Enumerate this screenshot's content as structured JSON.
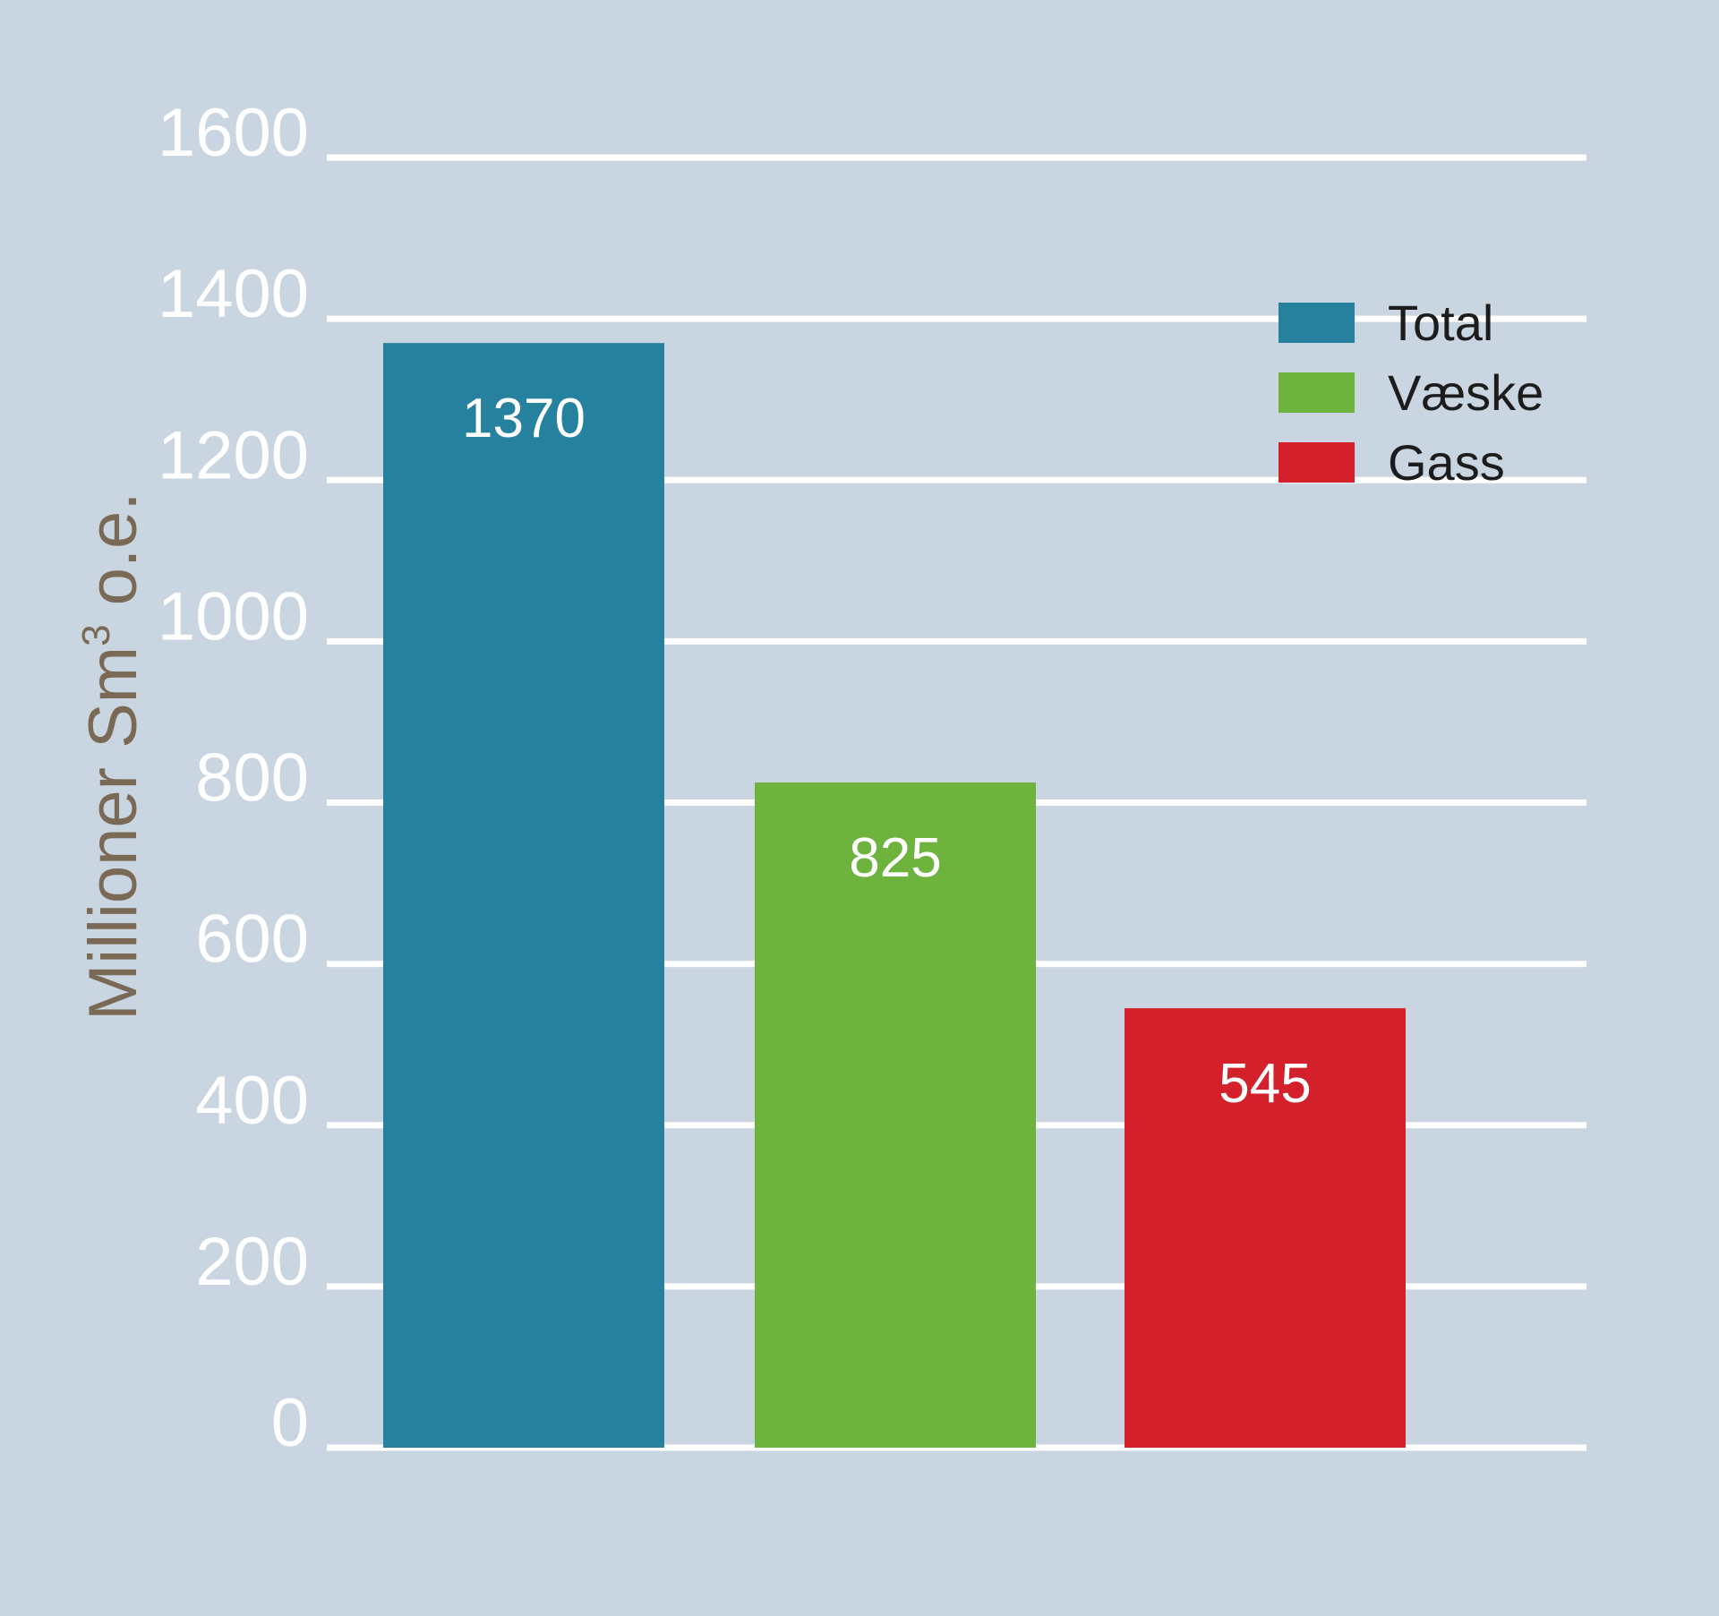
{
  "chart_data": {
    "type": "bar",
    "categories": [
      "Total",
      "Væske",
      "Gass"
    ],
    "values": [
      1370,
      825,
      545
    ],
    "data_labels": [
      "1370",
      "825",
      "545"
    ],
    "ylabel": "Millioner Sm",
    "ylabel_superscript": "3",
    "ylabel_suffix": " o.e.",
    "ylim": [
      0,
      1600
    ],
    "yticks": [
      0,
      200,
      400,
      600,
      800,
      1000,
      1200,
      1400,
      1600
    ],
    "ytick_labels": [
      "0",
      "200",
      "400",
      "600",
      "800",
      "1000",
      "1200",
      "1400",
      "1600"
    ],
    "grid": true,
    "legend_position": "top-right",
    "legend": [
      "Total",
      "Væske",
      "Gass"
    ],
    "colors": {
      "background": "#c9d5e0",
      "gridline": "#ffffff",
      "Total": "#26819f",
      "Væske": "#6fb33f",
      "Gass": "#d4202a",
      "ylabel": "#7a6a55"
    }
  }
}
